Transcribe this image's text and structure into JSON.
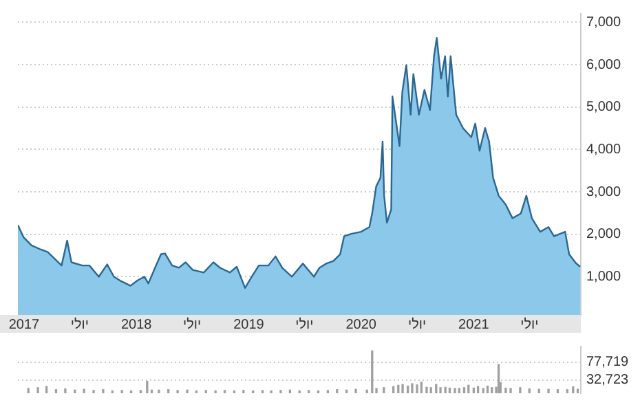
{
  "chart_data": [
    {
      "type": "area",
      "color": "#8cc8ea",
      "x": [
        "2016-12-12",
        "2016-12-30",
        "2017-01-25",
        "2017-02-25",
        "2017-03-19",
        "2017-05-03",
        "2017-05-21",
        "2017-06-04",
        "2017-07-09",
        "2017-08-01",
        "2017-09-01",
        "2017-09-28",
        "2017-10-20",
        "2017-11-12",
        "2017-12-13",
        "2018-01-05",
        "2018-01-27",
        "2018-02-09",
        "2018-03-04",
        "2018-03-22",
        "2018-04-04",
        "2018-04-27",
        "2018-05-19",
        "2018-06-10",
        "2018-07-03",
        "2018-08-08",
        "2018-09-08",
        "2018-09-30",
        "2018-11-01",
        "2018-11-23",
        "2018-12-20",
        "2019-01-11",
        "2019-02-03",
        "2019-03-06",
        "2019-03-29",
        "2019-04-20",
        "2019-05-21",
        "2019-06-26",
        "2019-08-01",
        "2019-08-19",
        "2019-09-10",
        "2019-10-03",
        "2019-10-25",
        "2019-11-07",
        "2019-11-30",
        "2020-01-01",
        "2020-01-28",
        "2020-02-06",
        "2020-02-19",
        "2020-03-04",
        "2020-03-11",
        "2020-03-16",
        "2020-03-25",
        "2020-04-08",
        "2020-04-12",
        "2020-05-05",
        "2020-05-14",
        "2020-05-27",
        "2020-06-10",
        "2020-06-19",
        "2020-07-07",
        "2020-07-25",
        "2020-08-12",
        "2020-08-25",
        "2020-09-03",
        "2020-09-17",
        "2020-09-30",
        "2020-10-09",
        "2020-10-18",
        "2020-11-05",
        "2020-11-27",
        "2020-12-24",
        "2021-01-06",
        "2021-01-20",
        "2021-02-07",
        "2021-02-20",
        "2021-03-05",
        "2021-03-23",
        "2021-04-15",
        "2021-05-07",
        "2021-06-03",
        "2021-06-21",
        "2021-07-09",
        "2021-08-05",
        "2021-09-01",
        "2021-09-19",
        "2021-10-25",
        "2021-11-07",
        "2021-11-29",
        "2021-12-13"
      ],
      "values": [
        2220,
        1935,
        1740,
        1640,
        1580,
        1265,
        1850,
        1340,
        1265,
        1265,
        1000,
        1290,
        1000,
        895,
        787,
        915,
        1000,
        840,
        1235,
        1530,
        1550,
        1265,
        1212,
        1340,
        1160,
        1100,
        1340,
        1210,
        1100,
        1235,
        735,
        1000,
        1265,
        1265,
        1480,
        1210,
        1000,
        1310,
        1000,
        1212,
        1310,
        1370,
        1530,
        1955,
        2010,
        2060,
        2170,
        2490,
        3125,
        3335,
        4185,
        2910,
        2275,
        2590,
        5250,
        4080,
        5355,
        5990,
        4820,
        5780,
        4820,
        5405,
        4930,
        6200,
        6630,
        5670,
        6200,
        5250,
        6200,
        4820,
        4505,
        4290,
        4610,
        3970,
        4505,
        4185,
        3335,
        2910,
        2700,
        2380,
        2490,
        2910,
        2380,
        2060,
        2170,
        1955,
        2060,
        1530,
        1320,
        1235
      ],
      "xlim": [
        "2016-12-12",
        "2021-12-15"
      ],
      "xticks": [
        {
          "value": "2017-01-01",
          "label": "2017"
        },
        {
          "value": "2017-07-01",
          "label": "יולי"
        },
        {
          "value": "2018-01-01",
          "label": "2018"
        },
        {
          "value": "2018-07-01",
          "label": "יולי"
        },
        {
          "value": "2019-01-01",
          "label": "2019"
        },
        {
          "value": "2019-07-01",
          "label": "יולי"
        },
        {
          "value": "2020-01-01",
          "label": "2020"
        },
        {
          "value": "2020-07-01",
          "label": "יולי"
        },
        {
          "value": "2021-01-01",
          "label": "2021"
        },
        {
          "value": "2021-07-01",
          "label": "יולי"
        }
      ],
      "ylim": [
        100,
        7200
      ],
      "yticks": [
        {
          "value": 1000,
          "label": "1,000"
        },
        {
          "value": 2000,
          "label": "2,000"
        },
        {
          "value": 3000,
          "label": "3,000"
        },
        {
          "value": 4000,
          "label": "4,000"
        },
        {
          "value": 5000,
          "label": "5,000"
        },
        {
          "value": 6000,
          "label": "6,000"
        },
        {
          "value": 7000,
          "label": "7,000"
        }
      ],
      "grid": "y"
    },
    {
      "type": "bar",
      "color": "#a0a0a0",
      "x": [
        "2017-01-15",
        "2017-02-15",
        "2017-03-15",
        "2017-04-15",
        "2017-05-15",
        "2017-06-15",
        "2017-07-15",
        "2017-08-15",
        "2017-09-15",
        "2017-10-15",
        "2017-11-15",
        "2017-12-15",
        "2018-01-15",
        "2018-02-05",
        "2018-02-20",
        "2018-03-15",
        "2018-04-15",
        "2018-05-15",
        "2018-06-15",
        "2018-07-15",
        "2018-08-15",
        "2018-09-15",
        "2018-10-15",
        "2018-11-15",
        "2018-12-15",
        "2019-01-15",
        "2019-02-15",
        "2019-03-15",
        "2019-04-15",
        "2019-05-15",
        "2019-06-15",
        "2019-07-15",
        "2019-08-15",
        "2019-09-15",
        "2019-10-15",
        "2019-11-15",
        "2019-12-15",
        "2020-01-20",
        "2020-02-06",
        "2020-02-20",
        "2020-03-15",
        "2020-04-15",
        "2020-05-01",
        "2020-05-15",
        "2020-06-01",
        "2020-06-15",
        "2020-07-01",
        "2020-07-15",
        "2020-08-01",
        "2020-08-15",
        "2020-09-01",
        "2020-09-15",
        "2020-10-01",
        "2020-10-15",
        "2020-11-01",
        "2020-11-15",
        "2020-12-01",
        "2020-12-15",
        "2021-01-01",
        "2021-01-15",
        "2021-02-01",
        "2021-02-15",
        "2021-03-01",
        "2021-03-15",
        "2021-03-23",
        "2021-03-29",
        "2021-04-15",
        "2021-05-01",
        "2021-06-01",
        "2021-07-01",
        "2021-08-01",
        "2021-09-01",
        "2021-10-01",
        "2021-11-01",
        "2021-11-20",
        "2021-12-05"
      ],
      "values": [
        12000,
        14000,
        17000,
        9000,
        11000,
        8000,
        10000,
        7000,
        9000,
        6000,
        7000,
        6000,
        7000,
        30000,
        8000,
        8000,
        9000,
        7000,
        8000,
        6000,
        7000,
        6000,
        7000,
        6000,
        7000,
        6000,
        7000,
        6000,
        7000,
        8000,
        6000,
        7000,
        6000,
        7000,
        9000,
        8000,
        10000,
        8000,
        106000,
        12000,
        14000,
        17000,
        20000,
        22000,
        18000,
        24000,
        21000,
        28000,
        15000,
        14000,
        22000,
        14000,
        15000,
        13000,
        12000,
        12000,
        14000,
        20000,
        13000,
        17000,
        12000,
        18000,
        14000,
        15000,
        72000,
        27000,
        13000,
        12000,
        14000,
        11000,
        10000,
        10000,
        9000,
        9000,
        16000,
        10000
      ],
      "xlim": [
        "2016-12-12",
        "2021-12-15"
      ],
      "ylim": [
        0,
        117000
      ],
      "yticks": [
        {
          "value": 77719,
          "label": "77,719"
        },
        {
          "value": 32723,
          "label": "32,723"
        }
      ],
      "grid": "y",
      "tick_labels": "y"
    }
  ]
}
